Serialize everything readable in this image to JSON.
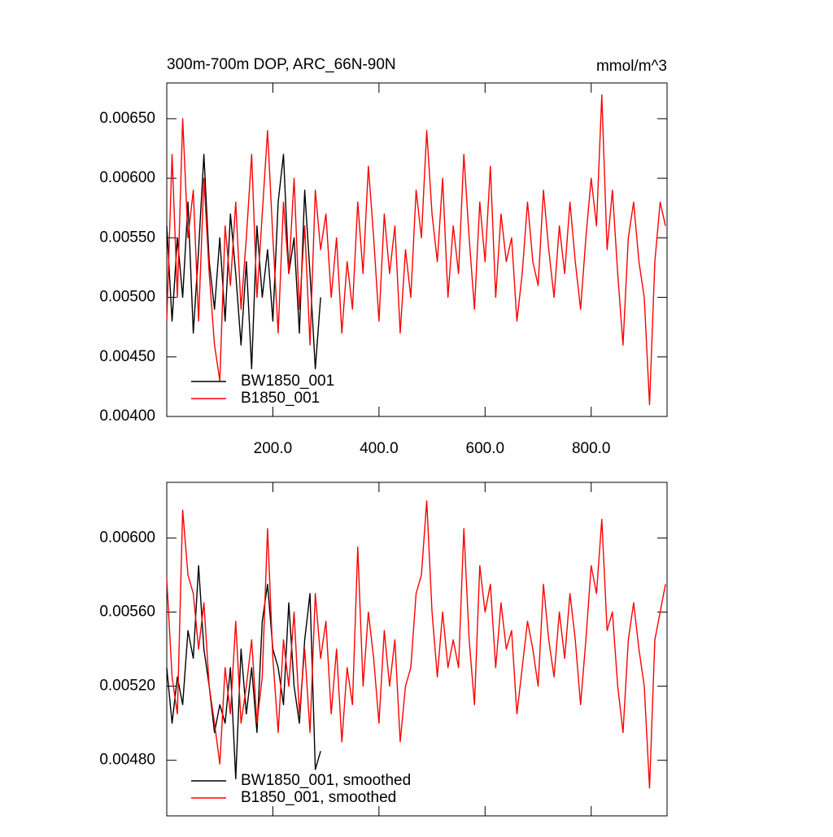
{
  "chart_data": [
    {
      "type": "line",
      "title": "300m-700m DOP, ARC_66N-90N",
      "units_label": "mmol/m^3",
      "xlim": [
        0,
        943
      ],
      "ylim": [
        0.004,
        0.0068
      ],
      "xticks": [
        {
          "value": 200,
          "label": "200.0"
        },
        {
          "value": 400,
          "label": "400.0"
        },
        {
          "value": 600,
          "label": "600.0"
        },
        {
          "value": 800,
          "label": "800.0"
        }
      ],
      "yticks": [
        {
          "value": 0.004,
          "label": "0.00400"
        },
        {
          "value": 0.0045,
          "label": "0.00450"
        },
        {
          "value": 0.005,
          "label": "0.00500"
        },
        {
          "value": 0.0055,
          "label": "0.00550"
        },
        {
          "value": 0.006,
          "label": "0.00600"
        },
        {
          "value": 0.0065,
          "label": "0.00650"
        }
      ],
      "legend": "lower left",
      "series": [
        {
          "name": "BW1850_001",
          "color": "#000000",
          "x": [
            0,
            10,
            20,
            30,
            40,
            50,
            60,
            70,
            80,
            90,
            100,
            110,
            120,
            130,
            140,
            150,
            160,
            170,
            180,
            190,
            200,
            210,
            220,
            230,
            240,
            250,
            260,
            270,
            280,
            290
          ],
          "values": [
            0.0056,
            0.0048,
            0.0055,
            0.005,
            0.0058,
            0.0047,
            0.0054,
            0.0062,
            0.0053,
            0.0049,
            0.0055,
            0.0048,
            0.0057,
            0.0052,
            0.0046,
            0.0053,
            0.0044,
            0.0056,
            0.005,
            0.0054,
            0.0048,
            0.0058,
            0.0062,
            0.0052,
            0.0055,
            0.0047,
            0.0059,
            0.0052,
            0.0044,
            0.005
          ]
        },
        {
          "name": "B1850_001",
          "color": "#ff0000",
          "x": [
            0,
            10,
            20,
            30,
            40,
            50,
            60,
            70,
            80,
            90,
            100,
            110,
            120,
            130,
            140,
            150,
            160,
            170,
            180,
            190,
            200,
            210,
            220,
            230,
            240,
            250,
            260,
            270,
            280,
            290,
            300,
            310,
            320,
            330,
            340,
            350,
            360,
            370,
            380,
            390,
            400,
            410,
            420,
            430,
            440,
            450,
            460,
            470,
            480,
            490,
            500,
            510,
            520,
            530,
            540,
            550,
            560,
            570,
            580,
            590,
            600,
            610,
            620,
            630,
            640,
            650,
            660,
            670,
            680,
            690,
            700,
            710,
            720,
            730,
            740,
            750,
            760,
            770,
            780,
            790,
            800,
            810,
            820,
            830,
            840,
            850,
            860,
            870,
            880,
            890,
            900,
            910,
            920,
            930,
            940
          ],
          "values": [
            0.0048,
            0.0062,
            0.005,
            0.0065,
            0.0055,
            0.0059,
            0.0048,
            0.006,
            0.0052,
            0.0046,
            0.0043,
            0.0056,
            0.0051,
            0.0058,
            0.0049,
            0.0055,
            0.0062,
            0.005,
            0.0057,
            0.0064,
            0.0055,
            0.0047,
            0.0058,
            0.0052,
            0.006,
            0.0049,
            0.0056,
            0.0046,
            0.0059,
            0.0054,
            0.0057,
            0.005,
            0.0055,
            0.0047,
            0.0053,
            0.0049,
            0.0058,
            0.0052,
            0.0061,
            0.0055,
            0.0048,
            0.0057,
            0.0052,
            0.0056,
            0.0047,
            0.0054,
            0.005,
            0.0059,
            0.0055,
            0.0064,
            0.0057,
            0.0053,
            0.006,
            0.005,
            0.0056,
            0.0052,
            0.0062,
            0.0055,
            0.0049,
            0.0058,
            0.0053,
            0.0061,
            0.005,
            0.0057,
            0.0053,
            0.0055,
            0.0048,
            0.0052,
            0.0058,
            0.0053,
            0.0051,
            0.0059,
            0.0054,
            0.005,
            0.0056,
            0.0052,
            0.0058,
            0.0053,
            0.0049,
            0.0055,
            0.006,
            0.0056,
            0.0067,
            0.0054,
            0.0059,
            0.0052,
            0.0046,
            0.0055,
            0.0058,
            0.0053,
            0.005,
            0.0041,
            0.0053,
            0.0058,
            0.0056
          ]
        }
      ]
    },
    {
      "type": "line",
      "xlim": [
        0,
        943
      ],
      "ylim": [
        0.0045,
        0.0063
      ],
      "xticks": [
        200,
        400,
        600,
        800
      ],
      "yticks": [
        {
          "value": 0.0048,
          "label": "0.00480"
        },
        {
          "value": 0.0052,
          "label": "0.00520"
        },
        {
          "value": 0.0056,
          "label": "0.00560"
        },
        {
          "value": 0.006,
          "label": "0.00600"
        }
      ],
      "legend": "lower left",
      "series": [
        {
          "name": "BW1850_001, smoothed",
          "color": "#000000",
          "x": [
            0,
            10,
            20,
            30,
            40,
            50,
            60,
            70,
            80,
            90,
            100,
            110,
            120,
            130,
            140,
            150,
            160,
            170,
            180,
            190,
            200,
            210,
            220,
            230,
            240,
            250,
            260,
            270,
            280,
            290
          ],
          "values": [
            0.0053,
            0.005,
            0.00525,
            0.0051,
            0.0055,
            0.00535,
            0.00585,
            0.0054,
            0.0052,
            0.00495,
            0.0051,
            0.005,
            0.0053,
            0.0047,
            0.0054,
            0.00505,
            0.0053,
            0.00495,
            0.00555,
            0.00575,
            0.0054,
            0.0053,
            0.0051,
            0.00565,
            0.0052,
            0.005,
            0.00545,
            0.0057,
            0.00475,
            0.00485
          ]
        },
        {
          "name": "B1850_001, smoothed",
          "color": "#ff0000",
          "x": [
            0,
            10,
            20,
            30,
            40,
            50,
            60,
            70,
            80,
            90,
            100,
            110,
            120,
            130,
            140,
            150,
            160,
            170,
            180,
            190,
            200,
            210,
            220,
            230,
            240,
            250,
            260,
            270,
            280,
            290,
            300,
            310,
            320,
            330,
            340,
            350,
            360,
            370,
            380,
            390,
            400,
            410,
            420,
            430,
            440,
            450,
            460,
            470,
            480,
            490,
            500,
            510,
            520,
            530,
            540,
            550,
            560,
            570,
            580,
            590,
            600,
            610,
            620,
            630,
            640,
            650,
            660,
            670,
            680,
            690,
            700,
            710,
            720,
            730,
            740,
            750,
            760,
            770,
            780,
            790,
            800,
            810,
            820,
            830,
            840,
            850,
            860,
            870,
            880,
            890,
            900,
            910,
            920,
            930,
            940
          ],
          "values": [
            0.00578,
            0.00525,
            0.00505,
            0.00615,
            0.0058,
            0.0057,
            0.0054,
            0.00565,
            0.0052,
            0.005,
            0.00478,
            0.0053,
            0.00505,
            0.00555,
            0.005,
            0.0052,
            0.00545,
            0.005,
            0.00525,
            0.00605,
            0.00535,
            0.00495,
            0.00545,
            0.0052,
            0.0056,
            0.00505,
            0.0054,
            0.00495,
            0.0057,
            0.00535,
            0.00555,
            0.00505,
            0.0054,
            0.0049,
            0.0053,
            0.0051,
            0.00595,
            0.0052,
            0.0056,
            0.00535,
            0.005,
            0.0055,
            0.0052,
            0.00545,
            0.0049,
            0.0052,
            0.0053,
            0.0057,
            0.0058,
            0.0062,
            0.0056,
            0.00525,
            0.0056,
            0.0053,
            0.00545,
            0.0053,
            0.00605,
            0.00545,
            0.0051,
            0.00585,
            0.0056,
            0.00575,
            0.0053,
            0.00565,
            0.0054,
            0.0055,
            0.00505,
            0.0053,
            0.00555,
            0.0054,
            0.0052,
            0.00575,
            0.00545,
            0.00525,
            0.0056,
            0.00535,
            0.0057,
            0.00545,
            0.0051,
            0.00545,
            0.00585,
            0.0057,
            0.0061,
            0.0055,
            0.0056,
            0.0052,
            0.00495,
            0.00545,
            0.00565,
            0.0054,
            0.0052,
            0.00465,
            0.00545,
            0.0056,
            0.00575
          ]
        }
      ]
    }
  ]
}
